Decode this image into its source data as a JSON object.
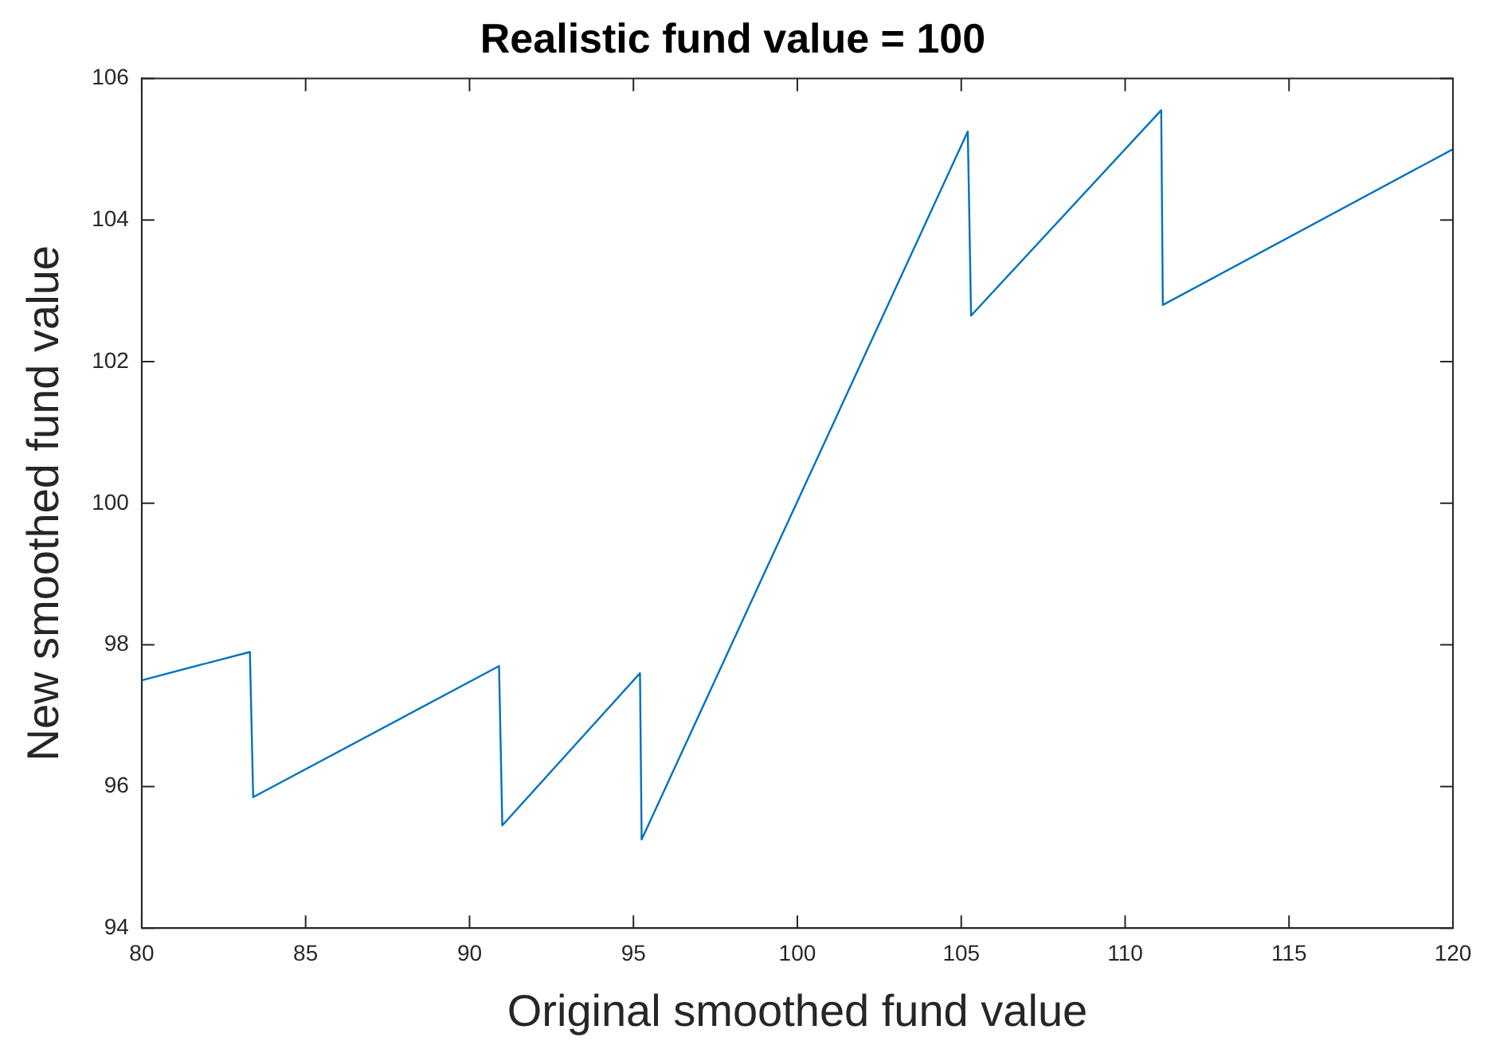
{
  "chart_data": {
    "type": "line",
    "title": "Realistic fund value = 100",
    "xlabel": "Original smoothed fund value",
    "ylabel": "New smoothed fund value",
    "x": [
      80,
      83.3,
      83.4,
      90.9,
      91.0,
      95.2,
      95.25,
      105.2,
      105.3,
      111.1,
      111.15,
      120
    ],
    "series": [
      {
        "color": "#0072bd",
        "values": [
          97.5,
          97.9,
          95.85,
          97.7,
          95.45,
          97.6,
          95.25,
          105.25,
          102.65,
          105.55,
          102.8,
          105.0
        ]
      }
    ],
    "xlim": [
      80,
      120
    ],
    "xticks": [
      80,
      85,
      90,
      95,
      100,
      105,
      110,
      115,
      120
    ],
    "ylim": [
      94,
      106
    ],
    "yticks": [
      94,
      96,
      98,
      100,
      102,
      104,
      106
    ],
    "grid": false,
    "legend": false,
    "marker": "none",
    "line_style": "solid"
  }
}
